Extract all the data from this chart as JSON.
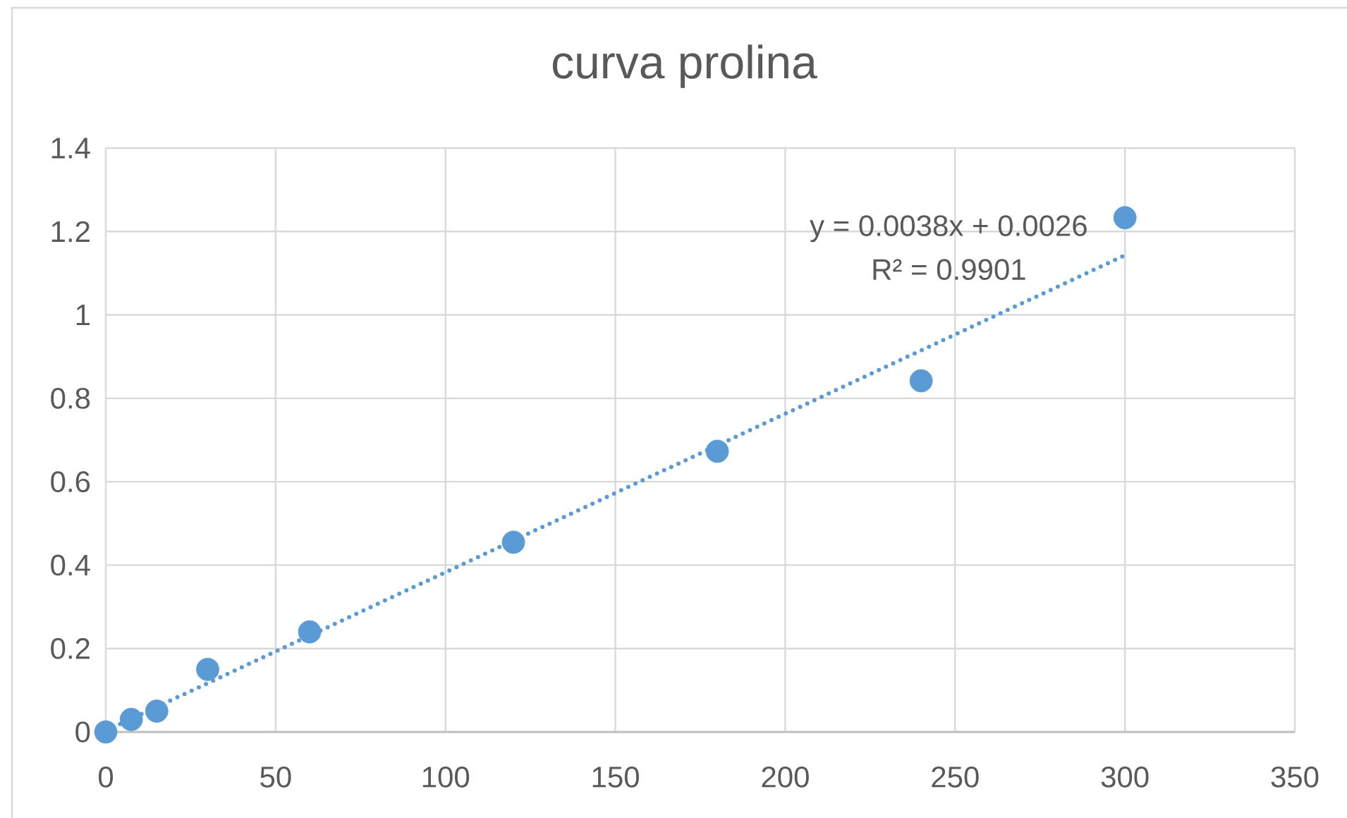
{
  "chart_data": {
    "type": "scatter",
    "title": "curva prolina",
    "series": [
      {
        "type": "scatter",
        "color": "#5b9bd5",
        "marker": "circle",
        "x": [
          0,
          7.5,
          15,
          30,
          60,
          120,
          180,
          240,
          300
        ],
        "values": [
          0,
          0.03,
          0.05,
          0.15,
          0.24,
          0.455,
          0.673,
          0.842,
          1.233
        ]
      },
      {
        "type": "line",
        "color": "#5b9bd5",
        "x": [
          0,
          300
        ],
        "values": [
          0.003,
          1.143
        ],
        "line_style": "dotted",
        "marker": "none"
      }
    ],
    "xlim": [
      0,
      350
    ],
    "ylim": [
      0,
      1.4
    ],
    "xticks": [
      0,
      50,
      100,
      150,
      200,
      250,
      300,
      350
    ],
    "yticks": [
      0,
      0.2,
      0.4,
      0.6,
      0.8,
      1,
      1.2,
      1.4
    ],
    "grid": true,
    "annotations": [
      "y = 0.0038x + 0.0026",
      "R² = 0.9901"
    ]
  }
}
